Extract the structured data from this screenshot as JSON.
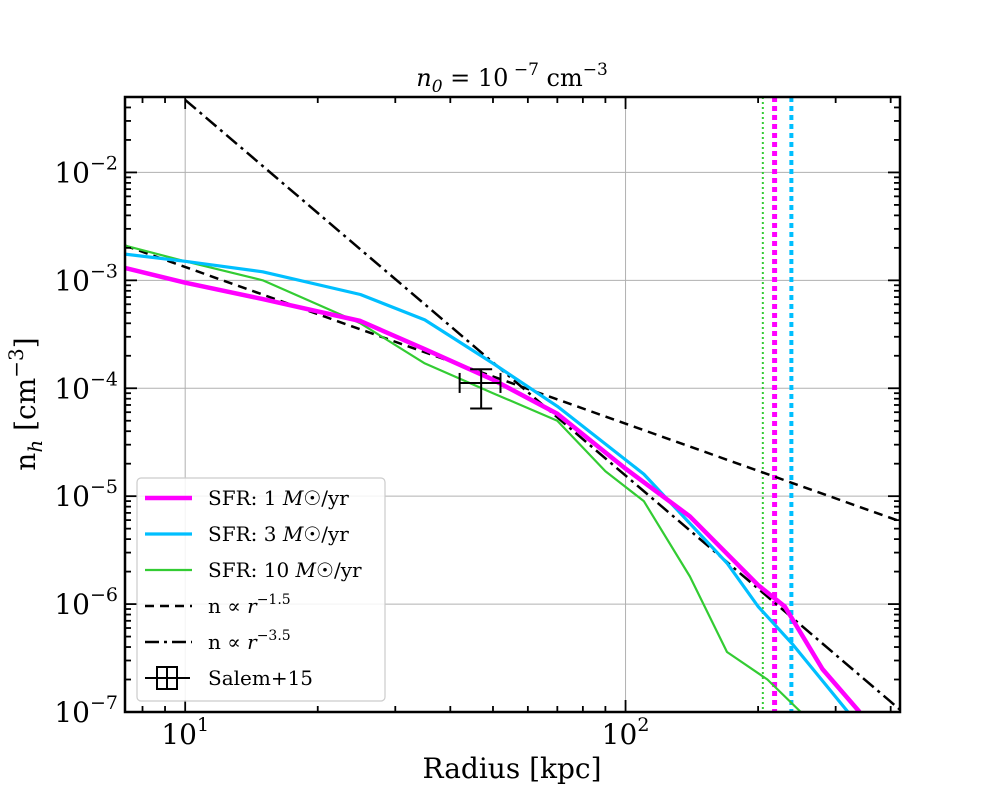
{
  "chart_data": {
    "type": "line",
    "title_prefix": "n",
    "title_sub": "0",
    "title_rest": " = 10",
    "title_exp": " −7",
    "title_unit": " cm",
    "title_unit_exp": "−3",
    "xlabel": "Radius [kpc]",
    "ylabel_main": "n",
    "ylabel_sub": "h",
    "ylabel_unit": "  [cm",
    "ylabel_unit_exp": "−3",
    "ylabel_close": "]",
    "xscale": "log",
    "yscale": "log",
    "xlim": [
      7.3,
      420
    ],
    "ylim": [
      1e-07,
      0.05
    ],
    "grid": true,
    "legend_position": "lower-left",
    "x_ticks": [
      {
        "value": 10,
        "base": "10",
        "exp": "1"
      },
      {
        "value": 100,
        "base": "10",
        "exp": "2"
      }
    ],
    "y_ticks": [
      {
        "value": 1e-07,
        "base": "10",
        "exp": "−7"
      },
      {
        "value": 1e-06,
        "base": "10",
        "exp": "−6"
      },
      {
        "value": 1e-05,
        "base": "10",
        "exp": "−5"
      },
      {
        "value": 0.0001,
        "base": "10",
        "exp": "−4"
      },
      {
        "value": 0.001,
        "base": "10",
        "exp": "−3"
      },
      {
        "value": 0.01,
        "base": "10",
        "exp": "−2"
      }
    ],
    "series": [
      {
        "name": "SFR: 1 M☉/yr",
        "label_prefix": "SFR: 1 ",
        "label_italic": "M",
        "label_suffix": "☉/yr",
        "color": "#ff00ff",
        "width": 4.5,
        "dash": "",
        "x": [
          7.3,
          10,
          15,
          25,
          35,
          50,
          70,
          100,
          140,
          200,
          230,
          280,
          340
        ],
        "y": [
          0.0013,
          0.00095,
          0.00067,
          0.00042,
          0.00023,
          0.00012,
          5.8e-05,
          1.8e-05,
          6.5e-06,
          1.5e-06,
          9.5e-07,
          2.5e-07,
          1e-07
        ]
      },
      {
        "name": "SFR: 3 M☉/yr",
        "label_prefix": "SFR: 3 ",
        "label_italic": "M",
        "label_suffix": "☉/yr",
        "color": "#00bfff",
        "width": 3.2,
        "dash": "",
        "x": [
          7.3,
          10,
          15,
          25,
          35,
          50,
          70,
          110,
          170,
          200,
          240,
          320
        ],
        "y": [
          0.00175,
          0.0015,
          0.0012,
          0.00074,
          0.00043,
          0.00017,
          6.8e-05,
          1.6e-05,
          2.4e-06,
          9.5e-07,
          4.2e-07,
          1e-07
        ]
      },
      {
        "name": "SFR: 10 M☉/yr",
        "label_prefix": "SFR: 10 ",
        "label_italic": "M",
        "label_suffix": "☉/yr",
        "color": "#33cc33",
        "width": 2.2,
        "dash": "",
        "x": [
          7.3,
          10,
          15,
          25,
          35,
          50,
          70,
          90,
          110,
          140,
          170,
          210,
          250
        ],
        "y": [
          0.0021,
          0.0015,
          0.001,
          0.0004,
          0.00017,
          9e-05,
          5e-05,
          1.7e-05,
          9e-06,
          1.8e-06,
          3.6e-07,
          2e-07,
          1e-07
        ]
      },
      {
        "name": "n ∝ r^−1.5",
        "label_prefix": "n ∝ ",
        "label_italic": "r",
        "label_exp": "−1.5",
        "label_suffix": "",
        "color": "#000000",
        "width": 2.5,
        "dash": "9,6",
        "x": [
          7.3,
          420
        ],
        "y": [
          0.0021,
          5.85e-06
        ]
      },
      {
        "name": "n ∝ r^−3.5",
        "label_prefix": "n ∝ ",
        "label_italic": "r",
        "label_exp": "−3.5",
        "label_suffix": "",
        "color": "#000000",
        "width": 2.5,
        "dash": "14,5,3,5",
        "x": [
          10,
          420
        ],
        "y": [
          0.047,
          1.05e-07
        ]
      }
    ],
    "errorbar": {
      "name": "Salem+15",
      "x": 47,
      "y": 0.000112,
      "x_err": [
        42,
        52
      ],
      "y_err": [
        6.5e-05,
        0.00015
      ],
      "color": "#000000"
    },
    "vlines": [
      {
        "x": 205,
        "color": "#33cc33",
        "style": "dotted",
        "width": 2
      },
      {
        "x": 218,
        "color": "#ff00ff",
        "style": "dotted",
        "width": 5
      },
      {
        "x": 238,
        "color": "#00bfff",
        "style": "dotted",
        "width": 4
      }
    ]
  }
}
